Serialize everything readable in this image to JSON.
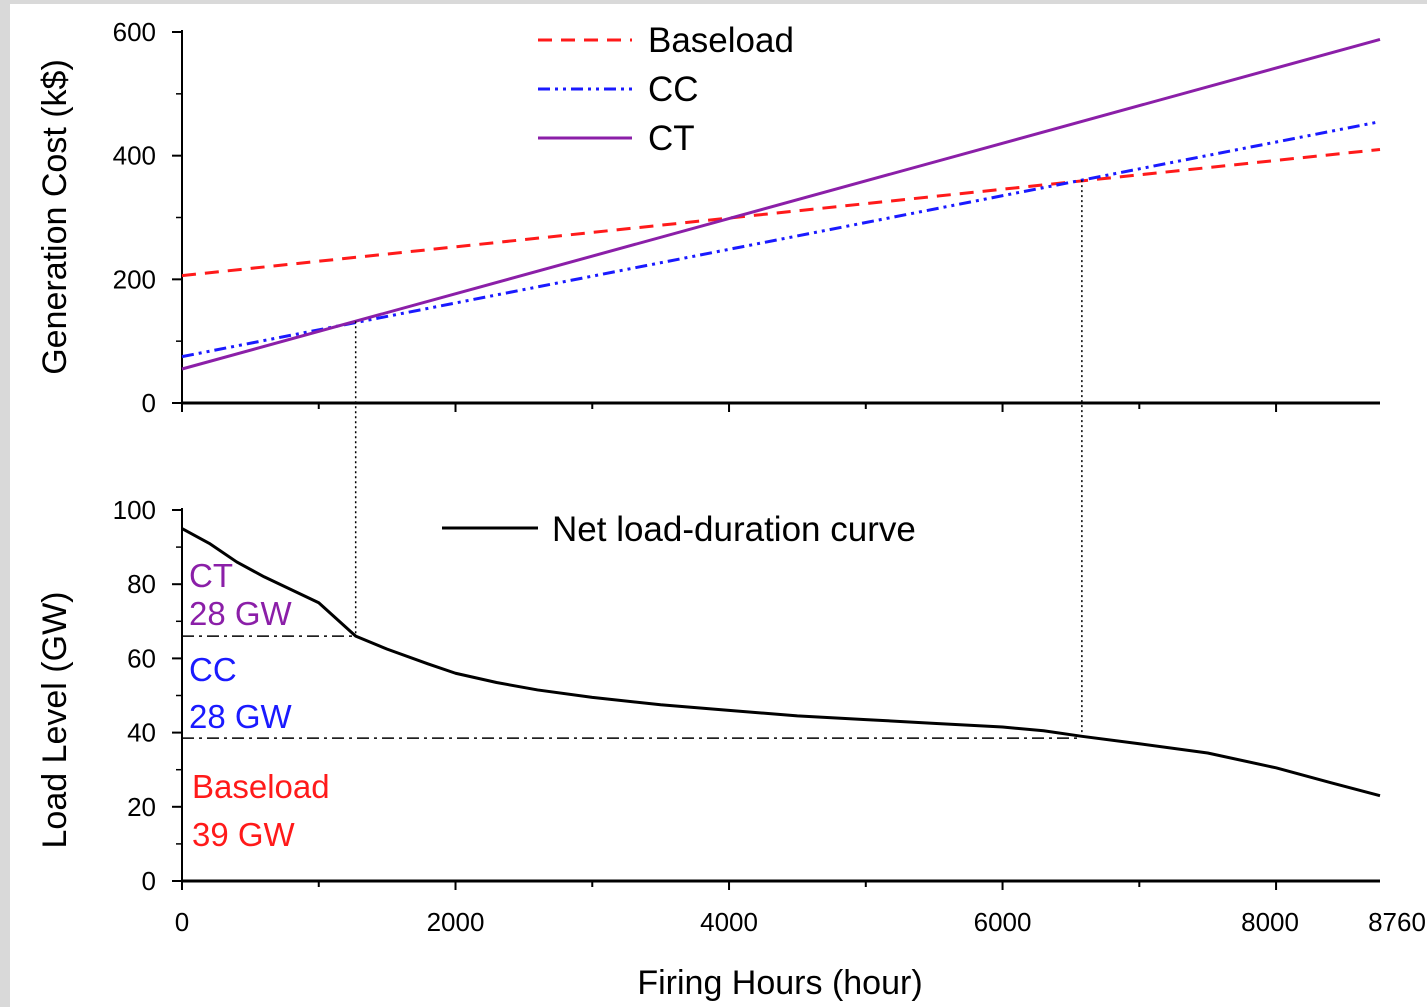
{
  "colors": {
    "baseload": "#ff1a1a",
    "cc": "#1a1aff",
    "ct": "#8b1fa8",
    "net_load": "#000000",
    "frame": "#d9d9d9"
  },
  "chart_data": [
    {
      "type": "line",
      "ylabel": "Generation Cost (k$)",
      "xlabel": "",
      "xlim": [
        0,
        8760
      ],
      "ylim": [
        0,
        600
      ],
      "yticks": [
        "0",
        "200",
        "400",
        "600"
      ],
      "grid": false,
      "legend_position": "top-center",
      "series": [
        {
          "name": "Baseload",
          "style": "dashed",
          "color": "#ff1a1a",
          "x": [
            0,
            8760
          ],
          "y": [
            206,
            410
          ]
        },
        {
          "name": "CC",
          "style": "dash-dot-dot",
          "color": "#1a1aff",
          "x": [
            0,
            8760
          ],
          "y": [
            75,
            455
          ]
        },
        {
          "name": "CT",
          "style": "solid",
          "color": "#8b1fa8",
          "x": [
            0,
            8760
          ],
          "y": [
            55,
            588
          ]
        }
      ]
    },
    {
      "type": "line",
      "ylabel": "Load Level (GW)",
      "xlabel": "Firing Hours (hour)",
      "xlim": [
        0,
        8760
      ],
      "ylim": [
        0,
        100
      ],
      "xticks": [
        "0",
        "2000",
        "4000",
        "6000",
        "8000",
        "8760"
      ],
      "yticks": [
        "0",
        "20",
        "40",
        "60",
        "80",
        "100"
      ],
      "grid": false,
      "legend_position": "top-center",
      "series": [
        {
          "name": "Net load-duration curve",
          "style": "solid",
          "color": "#000000",
          "x": [
            0,
            200,
            400,
            600,
            800,
            1000,
            1270,
            1500,
            1800,
            2000,
            2300,
            2600,
            3000,
            3500,
            4000,
            4500,
            5000,
            5500,
            6000,
            6300,
            6580,
            7000,
            7500,
            8000,
            8400,
            8760
          ],
          "y": [
            95,
            91,
            86,
            82,
            78.5,
            75,
            66,
            62.5,
            58.5,
            56,
            53.5,
            51.5,
            49.5,
            47.5,
            46,
            44.5,
            43.5,
            42.5,
            41.5,
            40.5,
            39,
            37,
            34.5,
            30.5,
            26.5,
            23
          ]
        }
      ],
      "annotations": {
        "ct_label": "CT",
        "ct_capacity": "28 GW",
        "cc_label": "CC",
        "cc_capacity": "28 GW",
        "baseload_label": "Baseload",
        "baseload_capacity": "39 GW"
      },
      "thresholds": {
        "load_levels_gw": [
          66,
          38.5
        ],
        "crossover_hours": [
          1270,
          6580
        ]
      }
    }
  ]
}
